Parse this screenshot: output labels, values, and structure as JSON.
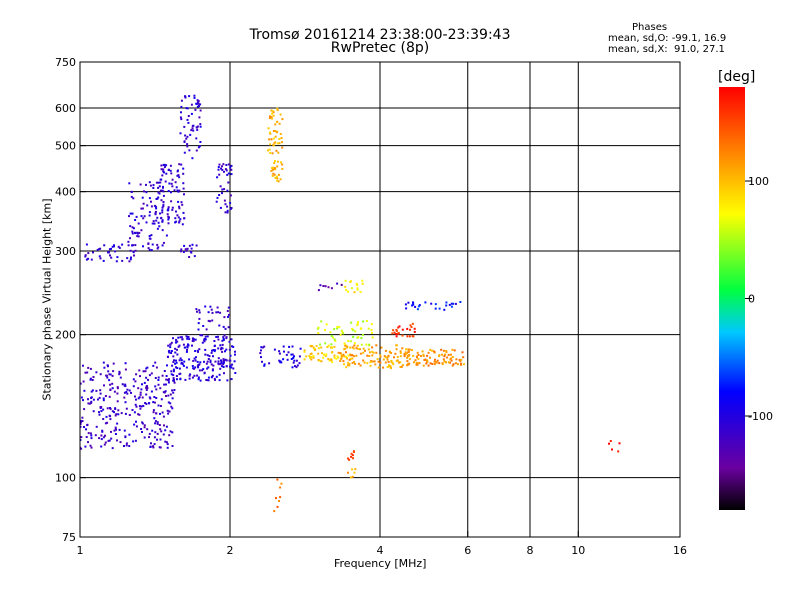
{
  "chart_data": {
    "type": "scatter",
    "title": "Tromsø 20161214 23:38:00-23:39:43",
    "subtitle": "RwPretec (8p)",
    "xlabel": "Frequency [MHz]",
    "ylabel": "Stationary phase Virtual Height [km]",
    "xscale": "log",
    "yscale": "log",
    "xlim": [
      1,
      16
    ],
    "ylim": [
      75,
      750
    ],
    "xticks": [
      1,
      2,
      4,
      6,
      8,
      10,
      16
    ],
    "yticks": [
      75,
      100,
      200,
      300,
      400,
      500,
      600,
      750
    ],
    "grid": true,
    "legend": {
      "title": "Phases",
      "line1": "mean, sd,O: -99.1, 16.9",
      "line2": "mean, sd,X:  91.0, 27.1"
    },
    "colorbar": {
      "label": "[deg]",
      "range": [
        -180,
        180
      ],
      "ticks": [
        100,
        0,
        -100
      ]
    },
    "clusters": [
      {
        "x": [
          1.0,
          1.55
        ],
        "y": [
          115,
          175
        ],
        "phase": -115,
        "n": 320
      },
      {
        "x": [
          1.5,
          2.05
        ],
        "y": [
          160,
          200
        ],
        "phase": -105,
        "n": 220
      },
      {
        "x": [
          1.7,
          2.0
        ],
        "y": [
          205,
          230
        ],
        "phase": -110,
        "n": 30
      },
      {
        "x": [
          1.02,
          1.3
        ],
        "y": [
          285,
          310
        ],
        "phase": -110,
        "n": 40
      },
      {
        "x": [
          1.25,
          1.5
        ],
        "y": [
          300,
          420
        ],
        "phase": -110,
        "n": 110
      },
      {
        "x": [
          1.45,
          1.62
        ],
        "y": [
          340,
          460
        ],
        "phase": -112,
        "n": 80
      },
      {
        "x": [
          1.58,
          1.75
        ],
        "y": [
          470,
          640
        ],
        "phase": -108,
        "n": 60
      },
      {
        "x": [
          1.58,
          1.72
        ],
        "y": [
          290,
          310
        ],
        "phase": -110,
        "n": 15
      },
      {
        "x": [
          1.88,
          2.02
        ],
        "y": [
          360,
          460
        ],
        "phase": -110,
        "n": 40
      },
      {
        "x": [
          2.38,
          2.55
        ],
        "y": [
          420,
          600
        ],
        "phase": 105,
        "n": 70
      },
      {
        "x": [
          2.3,
          2.8
        ],
        "y": [
          170,
          190
        ],
        "phase": -100,
        "n": 40
      },
      {
        "x": [
          2.8,
          3.5
        ],
        "y": [
          175,
          190
        ],
        "phase": 90,
        "n": 60
      },
      {
        "x": [
          3.3,
          4.6
        ],
        "y": [
          170,
          190
        ],
        "phase": 110,
        "n": 130
      },
      {
        "x": [
          4.5,
          5.9
        ],
        "y": [
          172,
          186
        ],
        "phase": 120,
        "n": 90
      },
      {
        "x": [
          3.0,
          3.9
        ],
        "y": [
          190,
          215
        ],
        "phase": 60,
        "n": 50
      },
      {
        "x": [
          4.2,
          4.7
        ],
        "y": [
          198,
          212
        ],
        "phase": 160,
        "n": 25
      },
      {
        "x": [
          4.5,
          5.8
        ],
        "y": [
          225,
          235
        ],
        "phase": -80,
        "n": 25
      },
      {
        "x": [
          3.4,
          3.7
        ],
        "y": [
          245,
          260
        ],
        "phase": 80,
        "n": 15
      },
      {
        "x": [
          3.0,
          3.4
        ],
        "y": [
          248,
          258
        ],
        "phase": -130,
        "n": 8
      },
      {
        "x": [
          3.45,
          3.6
        ],
        "y": [
          108,
          114
        ],
        "phase": 165,
        "n": 8
      },
      {
        "x": [
          3.45,
          3.6
        ],
        "y": [
          100,
          105
        ],
        "phase": 110,
        "n": 6
      },
      {
        "x": [
          2.45,
          2.55
        ],
        "y": [
          85,
          100
        ],
        "phase": 130,
        "n": 8
      },
      {
        "x": [
          11.5,
          12.2
        ],
        "y": [
          112,
          120
        ],
        "phase": 175,
        "n": 5
      }
    ]
  }
}
